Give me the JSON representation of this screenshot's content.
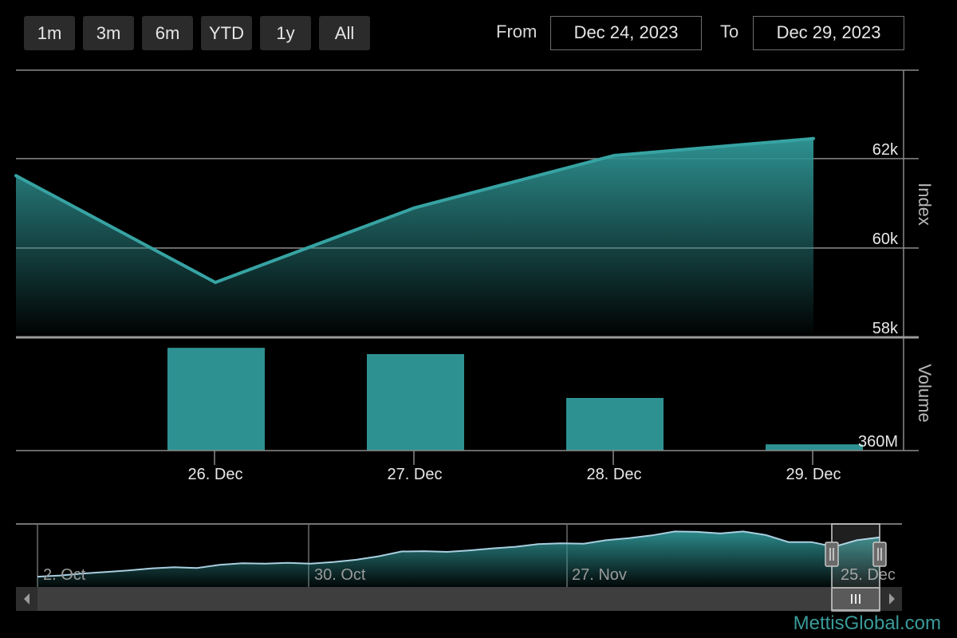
{
  "range_selector": {
    "buttons": [
      "1m",
      "3m",
      "6m",
      "YTD",
      "1y",
      "All"
    ],
    "from_label": "From",
    "from_value": "Dec 24, 2023",
    "to_label": "To",
    "to_value": "Dec 29, 2023"
  },
  "colors": {
    "accent": "#2e9191",
    "line": "#37a3a3",
    "grid": "#8a8a8a",
    "navigator_line": "#a8cfe0"
  },
  "chart_data": {
    "type": "area",
    "index": {
      "ylabel": "Index",
      "x": [
        "2023-12-25",
        "2023-12-26",
        "2023-12-27",
        "2023-12-28",
        "2023-12-29"
      ],
      "values": [
        61620,
        59230,
        60900,
        62070,
        62450
      ],
      "ylim": [
        58000,
        63980
      ],
      "yticks": [
        58000,
        60000,
        62000
      ],
      "ytick_labels": [
        "58k",
        "60k",
        "62k"
      ]
    },
    "volume": {
      "type": "bar",
      "ylabel": "Volume",
      "categories": [
        "26. Dec",
        "27. Dec",
        "28. Dec",
        "29. Dec"
      ],
      "values": [
        820,
        770,
        420,
        50
      ],
      "unit": "M",
      "ytick_labels": [
        "360M"
      ]
    },
    "xtick_labels": [
      "26. Dec",
      "27. Dec",
      "28. Dec",
      "29. Dec"
    ],
    "navigator": {
      "labels": [
        "2. Oct",
        "30. Oct",
        "27. Nov",
        "25. Dec"
      ],
      "values": [
        51000,
        51300,
        51800,
        52200,
        52600,
        53100,
        53400,
        53200,
        54000,
        54400,
        54300,
        54500,
        54300,
        54700,
        55300,
        56200,
        57400,
        57500,
        57300,
        57700,
        58200,
        58600,
        59300,
        59500,
        59400,
        60300,
        60800,
        61500,
        62500,
        62400,
        62000,
        62500,
        61600,
        59800,
        59800,
        58600,
        60300,
        61000
      ],
      "selected_range": [
        "Dec 24, 2023",
        "Dec 29, 2023"
      ]
    }
  },
  "watermark": "MettisGlobal.com"
}
